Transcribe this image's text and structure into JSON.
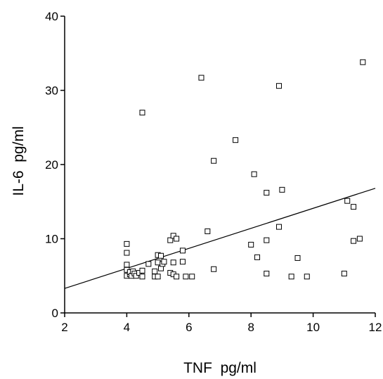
{
  "chart_data": {
    "type": "scatter",
    "title": "",
    "xlabel": "TNF  pg/ml",
    "ylabel": "IL-6  pg/ml",
    "xlim": [
      2,
      12
    ],
    "ylim": [
      0,
      40
    ],
    "x_ticks": [
      2,
      4,
      6,
      8,
      10,
      12
    ],
    "y_ticks": [
      0,
      10,
      20,
      30,
      40
    ],
    "grid": false,
    "legend": "none",
    "marker": "open-square",
    "series": [
      {
        "points": [
          [
            4.0,
            9.3
          ],
          [
            4.0,
            8.1
          ],
          [
            4.0,
            6.5
          ],
          [
            4.0,
            5.8
          ],
          [
            4.0,
            5.0
          ],
          [
            4.1,
            5.2
          ],
          [
            4.1,
            5.5
          ],
          [
            4.15,
            5.0
          ],
          [
            4.2,
            5.6
          ],
          [
            4.25,
            5.3
          ],
          [
            4.3,
            5.0
          ],
          [
            4.4,
            5.4
          ],
          [
            4.5,
            5.7
          ],
          [
            4.5,
            4.9
          ],
          [
            4.5,
            27.0
          ],
          [
            4.7,
            6.6
          ],
          [
            4.9,
            5.6
          ],
          [
            4.9,
            4.9
          ],
          [
            5.0,
            4.9
          ],
          [
            5.0,
            6.8
          ],
          [
            5.0,
            7.8
          ],
          [
            5.1,
            7.7
          ],
          [
            5.1,
            6.0
          ],
          [
            5.15,
            6.6
          ],
          [
            5.2,
            6.9
          ],
          [
            5.4,
            5.4
          ],
          [
            5.4,
            9.8
          ],
          [
            5.5,
            10.4
          ],
          [
            5.5,
            6.8
          ],
          [
            5.5,
            5.2
          ],
          [
            5.6,
            4.9
          ],
          [
            5.6,
            10.0
          ],
          [
            5.8,
            8.4
          ],
          [
            5.8,
            6.9
          ],
          [
            5.9,
            4.9
          ],
          [
            6.1,
            4.9
          ],
          [
            6.4,
            31.7
          ],
          [
            6.6,
            11.0
          ],
          [
            6.8,
            20.5
          ],
          [
            6.8,
            5.9
          ],
          [
            7.5,
            23.3
          ],
          [
            8.0,
            9.2
          ],
          [
            8.1,
            18.7
          ],
          [
            8.2,
            7.5
          ],
          [
            8.5,
            16.2
          ],
          [
            8.5,
            9.8
          ],
          [
            8.5,
            5.3
          ],
          [
            8.9,
            30.6
          ],
          [
            8.9,
            11.6
          ],
          [
            9.0,
            16.6
          ],
          [
            9.3,
            4.9
          ],
          [
            9.5,
            7.4
          ],
          [
            9.8,
            4.9
          ],
          [
            11.0,
            5.3
          ],
          [
            11.1,
            15.1
          ],
          [
            11.3,
            14.3
          ],
          [
            11.3,
            9.7
          ],
          [
            11.5,
            10.0
          ],
          [
            11.6,
            33.8
          ]
        ]
      }
    ],
    "trendline": {
      "x": [
        2,
        12
      ],
      "y": [
        3.3,
        16.8
      ]
    }
  }
}
